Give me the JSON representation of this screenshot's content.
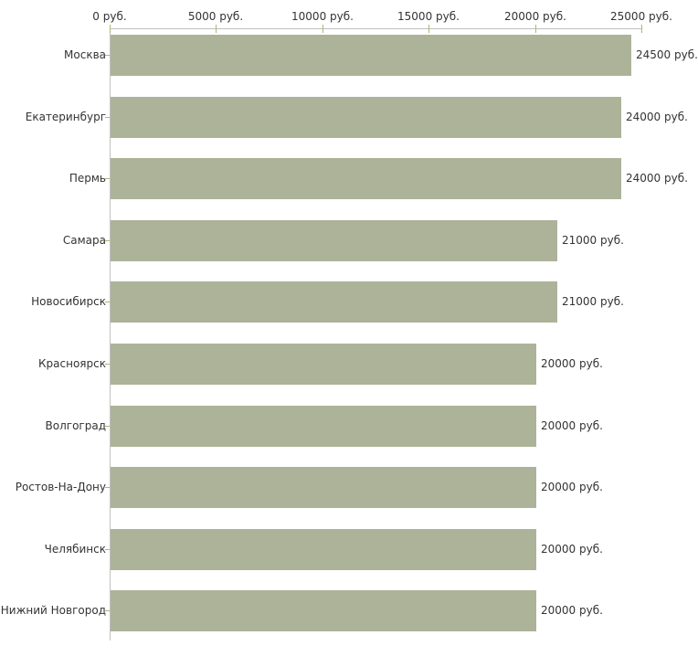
{
  "chart_data": {
    "type": "bar",
    "orientation": "horizontal",
    "title": "",
    "xlabel": "",
    "ylabel": "",
    "categories": [
      "Москва",
      "Екатеринбург",
      "Пермь",
      "Самара",
      "Новосибирск",
      "Красноярск",
      "Волгоград",
      "Ростов-На-Дону",
      "Челябинск",
      "Нижний Новгород"
    ],
    "values": [
      24500,
      24000,
      24000,
      21000,
      21000,
      20000,
      20000,
      20000,
      20000,
      20000
    ],
    "value_labels": [
      "24500 руб.",
      "24000 руб.",
      "24000 руб.",
      "21000 руб.",
      "21000 руб.",
      "20000 руб.",
      "20000 руб.",
      "20000 руб.",
      "20000 руб.",
      "20000 руб."
    ],
    "x_tick_values": [
      0,
      5000,
      10000,
      15000,
      20000,
      25000
    ],
    "x_tick_labels": [
      "0 руб.",
      "5000 руб.",
      "10000 руб.",
      "15000 руб.",
      "20000 руб.",
      "25000 руб."
    ],
    "xlim": [
      0,
      25000
    ],
    "axis_position": "top",
    "grid": false,
    "legend": false,
    "colors": {
      "bar": "#acb398",
      "axis": "#c0c0c0",
      "tick": "#b4b56a",
      "text": "#333333",
      "background": "#ffffff"
    }
  }
}
